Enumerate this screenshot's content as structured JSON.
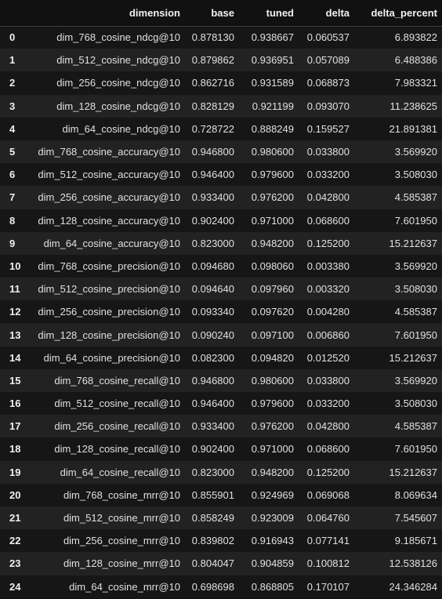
{
  "table": {
    "columns": [
      "",
      "dimension",
      "base",
      "tuned",
      "delta",
      "delta_percent"
    ],
    "rows": [
      {
        "index": "0",
        "dimension": "dim_768_cosine_ndcg@10",
        "base": "0.878130",
        "tuned": "0.938667",
        "delta": "0.060537",
        "delta_percent": "6.893822"
      },
      {
        "index": "1",
        "dimension": "dim_512_cosine_ndcg@10",
        "base": "0.879862",
        "tuned": "0.936951",
        "delta": "0.057089",
        "delta_percent": "6.488386"
      },
      {
        "index": "2",
        "dimension": "dim_256_cosine_ndcg@10",
        "base": "0.862716",
        "tuned": "0.931589",
        "delta": "0.068873",
        "delta_percent": "7.983321"
      },
      {
        "index": "3",
        "dimension": "dim_128_cosine_ndcg@10",
        "base": "0.828129",
        "tuned": "0.921199",
        "delta": "0.093070",
        "delta_percent": "11.238625"
      },
      {
        "index": "4",
        "dimension": "dim_64_cosine_ndcg@10",
        "base": "0.728722",
        "tuned": "0.888249",
        "delta": "0.159527",
        "delta_percent": "21.891381"
      },
      {
        "index": "5",
        "dimension": "dim_768_cosine_accuracy@10",
        "base": "0.946800",
        "tuned": "0.980600",
        "delta": "0.033800",
        "delta_percent": "3.569920"
      },
      {
        "index": "6",
        "dimension": "dim_512_cosine_accuracy@10",
        "base": "0.946400",
        "tuned": "0.979600",
        "delta": "0.033200",
        "delta_percent": "3.508030"
      },
      {
        "index": "7",
        "dimension": "dim_256_cosine_accuracy@10",
        "base": "0.933400",
        "tuned": "0.976200",
        "delta": "0.042800",
        "delta_percent": "4.585387"
      },
      {
        "index": "8",
        "dimension": "dim_128_cosine_accuracy@10",
        "base": "0.902400",
        "tuned": "0.971000",
        "delta": "0.068600",
        "delta_percent": "7.601950"
      },
      {
        "index": "9",
        "dimension": "dim_64_cosine_accuracy@10",
        "base": "0.823000",
        "tuned": "0.948200",
        "delta": "0.125200",
        "delta_percent": "15.212637"
      },
      {
        "index": "10",
        "dimension": "dim_768_cosine_precision@10",
        "base": "0.094680",
        "tuned": "0.098060",
        "delta": "0.003380",
        "delta_percent": "3.569920"
      },
      {
        "index": "11",
        "dimension": "dim_512_cosine_precision@10",
        "base": "0.094640",
        "tuned": "0.097960",
        "delta": "0.003320",
        "delta_percent": "3.508030"
      },
      {
        "index": "12",
        "dimension": "dim_256_cosine_precision@10",
        "base": "0.093340",
        "tuned": "0.097620",
        "delta": "0.004280",
        "delta_percent": "4.585387"
      },
      {
        "index": "13",
        "dimension": "dim_128_cosine_precision@10",
        "base": "0.090240",
        "tuned": "0.097100",
        "delta": "0.006860",
        "delta_percent": "7.601950"
      },
      {
        "index": "14",
        "dimension": "dim_64_cosine_precision@10",
        "base": "0.082300",
        "tuned": "0.094820",
        "delta": "0.012520",
        "delta_percent": "15.212637"
      },
      {
        "index": "15",
        "dimension": "dim_768_cosine_recall@10",
        "base": "0.946800",
        "tuned": "0.980600",
        "delta": "0.033800",
        "delta_percent": "3.569920"
      },
      {
        "index": "16",
        "dimension": "dim_512_cosine_recall@10",
        "base": "0.946400",
        "tuned": "0.979600",
        "delta": "0.033200",
        "delta_percent": "3.508030"
      },
      {
        "index": "17",
        "dimension": "dim_256_cosine_recall@10",
        "base": "0.933400",
        "tuned": "0.976200",
        "delta": "0.042800",
        "delta_percent": "4.585387"
      },
      {
        "index": "18",
        "dimension": "dim_128_cosine_recall@10",
        "base": "0.902400",
        "tuned": "0.971000",
        "delta": "0.068600",
        "delta_percent": "7.601950"
      },
      {
        "index": "19",
        "dimension": "dim_64_cosine_recall@10",
        "base": "0.823000",
        "tuned": "0.948200",
        "delta": "0.125200",
        "delta_percent": "15.212637"
      },
      {
        "index": "20",
        "dimension": "dim_768_cosine_mrr@10",
        "base": "0.855901",
        "tuned": "0.924969",
        "delta": "0.069068",
        "delta_percent": "8.069634"
      },
      {
        "index": "21",
        "dimension": "dim_512_cosine_mrr@10",
        "base": "0.858249",
        "tuned": "0.923009",
        "delta": "0.064760",
        "delta_percent": "7.545607"
      },
      {
        "index": "22",
        "dimension": "dim_256_cosine_mrr@10",
        "base": "0.839802",
        "tuned": "0.916943",
        "delta": "0.077141",
        "delta_percent": "9.185671"
      },
      {
        "index": "23",
        "dimension": "dim_128_cosine_mrr@10",
        "base": "0.804047",
        "tuned": "0.904859",
        "delta": "0.100812",
        "delta_percent": "12.538126"
      },
      {
        "index": "24",
        "dimension": "dim_64_cosine_mrr@10",
        "base": "0.698698",
        "tuned": "0.868805",
        "delta": "0.170107",
        "delta_percent": "24.346284"
      }
    ]
  }
}
